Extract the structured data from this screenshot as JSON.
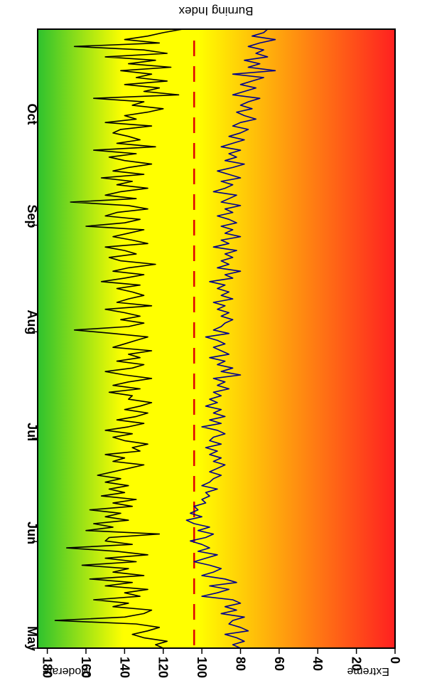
{
  "chart_data": {
    "type": "line",
    "title": "",
    "orientation": "rotated 90 degrees counter-clockwise: time runs along the vertical axis, index along the horizontal axis",
    "ylabel": "Burning Index",
    "ylim": [
      0,
      185
    ],
    "yticks": [
      0,
      20,
      40,
      60,
      80,
      100,
      120,
      140,
      160,
      180
    ],
    "xlim": [
      0,
      180
    ],
    "month_ticks": [
      {
        "label": "May",
        "day": 0
      },
      {
        "label": "Jun",
        "day": 31
      },
      {
        "label": "Jul",
        "day": 61
      },
      {
        "label": "Aug",
        "day": 92
      },
      {
        "label": "Sep",
        "day": 123
      },
      {
        "label": "Oct",
        "day": 153
      }
    ],
    "zone_labels": {
      "high": "Extreme",
      "low": "Moderate"
    },
    "background_gradient": [
      "#2ec22e",
      "#ffff00",
      "#ffff00",
      "#ff2020"
    ],
    "reference_line": {
      "value": 104,
      "color": "#e00000",
      "style": "dashed"
    },
    "series": [
      {
        "color": "#000000",
        "values": [
          120,
          124,
          118,
          130,
          136,
          128,
          122,
          134,
          176,
          140,
          130,
          126,
          146,
          138,
          156,
          132,
          140,
          128,
          150,
          136,
          158,
          130,
          146,
          138,
          162,
          134,
          150,
          128,
          144,
          170,
          136,
          150,
          148,
          122,
          160,
          146,
          156,
          138,
          150,
          142,
          158,
          136,
          146,
          134,
          152,
          140,
          148,
          138,
          150,
          142,
          154,
          146,
          138,
          130,
          146,
          140,
          150,
          132,
          136,
          128,
          140,
          146,
          136,
          150,
          138,
          130,
          144,
          134,
          128,
          140,
          132,
          126,
          138,
          136,
          148,
          132,
          146,
          138,
          126,
          140,
          150,
          136,
          130,
          144,
          132,
          138,
          126,
          146,
          140,
          134,
          128,
          146,
          166,
          138,
          130,
          142,
          132,
          140,
          150,
          126,
          144,
          138,
          130,
          136,
          144,
          132,
          152,
          140,
          130,
          146,
          138,
          124,
          142,
          148,
          134,
          140,
          150,
          128,
          136,
          146,
          138,
          130,
          160,
          140,
          132,
          150,
          144,
          128,
          138,
          168,
          134,
          150,
          142,
          128,
          144,
          136,
          152,
          130,
          146,
          138,
          126,
          140,
          148,
          134,
          156,
          124,
          144,
          132,
          138,
          146,
          142,
          126,
          150,
          134,
          140,
          128,
          120,
          136,
          130,
          156,
          112,
          130,
          122,
          140,
          118,
          134,
          126,
          142,
          116,
          138,
          124,
          150,
          118,
          130,
          166,
          122,
          140,
          128,
          120,
          110
        ]
      },
      {
        "color": "#00008b",
        "values": [
          80,
          84,
          78,
          82,
          88,
          76,
          80,
          86,
          84,
          78,
          90,
          82,
          88,
          80,
          84,
          100,
          92,
          86,
          96,
          82,
          88,
          100,
          94,
          90,
          96,
          104,
          98,
          92,
          102,
          96,
          100,
          106,
          98,
          94,
          102,
          96,
          104,
          108,
          100,
          106,
          102,
          104,
          98,
          100,
          96,
          98,
          92,
          100,
          96,
          94,
          90,
          96,
          92,
          88,
          94,
          90,
          96,
          92,
          98,
          90,
          96,
          94,
          88,
          92,
          100,
          90,
          96,
          88,
          94,
          90,
          98,
          92,
          96,
          90,
          94,
          86,
          92,
          88,
          94,
          80,
          90,
          84,
          92,
          88,
          96,
          86,
          90,
          94,
          88,
          92,
          98,
          86,
          94,
          90,
          88,
          84,
          90,
          86,
          92,
          88,
          94,
          84,
          90,
          86,
          92,
          88,
          96,
          84,
          88,
          80,
          92,
          86,
          90,
          84,
          88,
          82,
          94,
          86,
          90,
          80,
          88,
          84,
          90,
          82,
          86,
          92,
          84,
          88,
          80,
          90,
          86,
          82,
          94,
          88,
          84,
          90,
          80,
          86,
          92,
          84,
          78,
          88,
          82,
          86,
          80,
          90,
          84,
          78,
          86,
          80,
          76,
          84,
          80,
          72,
          78,
          82,
          74,
          80,
          76,
          70,
          84,
          78,
          72,
          80,
          74,
          68,
          84,
          62,
          76,
          70,
          78,
          66,
          72,
          68,
          76,
          70,
          62,
          74,
          68,
          66
        ]
      }
    ]
  }
}
